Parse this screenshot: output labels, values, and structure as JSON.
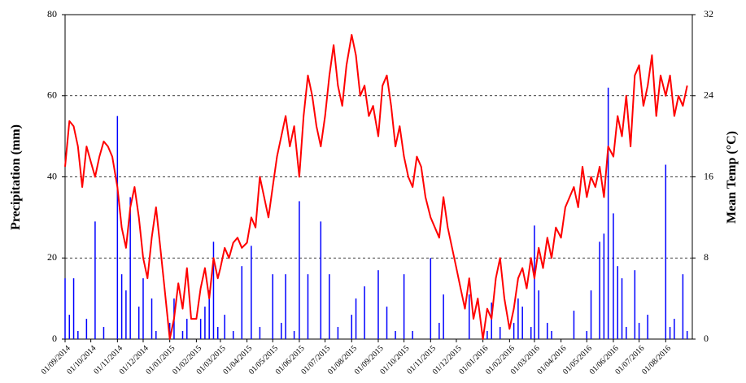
{
  "chart_data": {
    "type": "bar_line",
    "y_label": "Precipitation (mm)",
    "y2_label": "Mean Temp (°C)",
    "x": [
      "2014-09-01",
      "2014-09-06",
      "2014-09-11",
      "2014-09-16",
      "2014-09-21",
      "2014-09-26",
      "2014-10-01",
      "2014-10-06",
      "2014-10-11",
      "2014-10-16",
      "2014-10-21",
      "2014-10-26",
      "2014-11-01",
      "2014-11-06",
      "2014-11-11",
      "2014-11-16",
      "2014-11-21",
      "2014-11-26",
      "2014-12-01",
      "2014-12-06",
      "2014-12-11",
      "2014-12-16",
      "2014-12-21",
      "2014-12-26",
      "2015-01-01",
      "2015-01-06",
      "2015-01-11",
      "2015-01-16",
      "2015-01-21",
      "2015-01-26",
      "2015-02-01",
      "2015-02-06",
      "2015-02-11",
      "2015-02-16",
      "2015-02-21",
      "2015-02-26",
      "2015-03-01",
      "2015-03-06",
      "2015-03-11",
      "2015-03-16",
      "2015-03-21",
      "2015-03-26",
      "2015-04-01",
      "2015-04-06",
      "2015-04-11",
      "2015-04-16",
      "2015-04-21",
      "2015-04-26",
      "2015-05-01",
      "2015-05-06",
      "2015-05-11",
      "2015-05-16",
      "2015-05-21",
      "2015-05-26",
      "2015-06-01",
      "2015-06-06",
      "2015-06-11",
      "2015-06-16",
      "2015-06-21",
      "2015-06-26",
      "2015-07-01",
      "2015-07-06",
      "2015-07-11",
      "2015-07-16",
      "2015-07-21",
      "2015-07-26",
      "2015-08-01",
      "2015-08-06",
      "2015-08-11",
      "2015-08-16",
      "2015-08-21",
      "2015-08-26",
      "2015-09-01",
      "2015-09-06",
      "2015-09-11",
      "2015-09-16",
      "2015-09-21",
      "2015-09-26",
      "2015-10-01",
      "2015-10-06",
      "2015-10-11",
      "2015-10-16",
      "2015-10-21",
      "2015-10-26",
      "2015-11-01",
      "2015-11-06",
      "2015-11-11",
      "2015-11-16",
      "2015-11-21",
      "2015-11-26",
      "2015-12-01",
      "2015-12-06",
      "2015-12-11",
      "2015-12-16",
      "2015-12-21",
      "2015-12-26",
      "2016-01-01",
      "2016-01-06",
      "2016-01-11",
      "2016-01-16",
      "2016-01-21",
      "2016-01-26",
      "2016-02-01",
      "2016-02-06",
      "2016-02-11",
      "2016-02-16",
      "2016-02-21",
      "2016-02-26",
      "2016-03-01",
      "2016-03-06",
      "2016-03-11",
      "2016-03-16",
      "2016-03-21",
      "2016-03-26",
      "2016-04-01",
      "2016-04-06",
      "2016-04-11",
      "2016-04-16",
      "2016-04-21",
      "2016-04-26",
      "2016-05-01",
      "2016-05-06",
      "2016-05-11",
      "2016-05-16",
      "2016-05-21",
      "2016-05-26",
      "2016-06-01",
      "2016-06-06",
      "2016-06-11",
      "2016-06-16",
      "2016-06-21",
      "2016-06-26",
      "2016-07-01",
      "2016-07-06",
      "2016-07-11",
      "2016-07-16",
      "2016-07-21",
      "2016-07-26",
      "2016-08-01",
      "2016-08-06",
      "2016-08-11",
      "2016-08-16",
      "2016-08-21",
      "2016-08-26"
    ],
    "series": [
      {
        "type": "bar",
        "color": "#0000ff",
        "values": [
          15,
          6,
          15,
          2,
          0,
          5,
          0,
          29,
          0,
          3,
          0,
          0,
          55,
          16,
          12,
          35,
          0,
          8,
          15,
          0,
          10,
          2,
          0,
          0,
          4,
          10,
          0,
          2,
          5,
          0,
          0,
          5,
          8,
          12,
          24,
          3,
          0,
          6,
          0,
          2,
          0,
          18,
          0,
          23,
          0,
          3,
          0,
          0,
          16,
          0,
          4,
          16,
          0,
          2,
          34,
          0,
          16,
          0,
          0,
          29,
          0,
          16,
          0,
          3,
          0,
          0,
          6,
          10,
          0,
          13,
          0,
          0,
          17,
          0,
          8,
          0,
          2,
          0,
          16,
          0,
          2,
          0,
          0,
          0,
          20,
          0,
          4,
          11,
          0,
          0,
          0,
          0,
          0,
          11,
          0,
          0,
          0,
          2,
          9,
          0,
          3,
          0,
          0,
          4,
          10,
          8,
          0,
          3,
          28,
          12,
          0,
          4,
          2,
          0,
          0,
          0,
          0,
          7,
          0,
          0,
          2,
          12,
          0,
          24,
          26,
          62,
          31,
          18,
          15,
          3,
          0,
          17,
          4,
          0,
          6,
          0,
          0,
          0,
          43,
          3,
          5,
          0,
          16,
          2
        ]
      },
      {
        "type": "line",
        "axis": "y2",
        "color": "#ff0000",
        "values": [
          17,
          21.5,
          21,
          19,
          15,
          19,
          17.5,
          16,
          18,
          19.5,
          19,
          18,
          15,
          11,
          9,
          13,
          15,
          12,
          8,
          6,
          10,
          13,
          9,
          5,
          0,
          2,
          5.5,
          3,
          7,
          2,
          2,
          5,
          7,
          4,
          8,
          6,
          7,
          9,
          8,
          9.5,
          10,
          9,
          9.5,
          12,
          11,
          16,
          14,
          12,
          15,
          18,
          20,
          22,
          19,
          21,
          16,
          22,
          26,
          24,
          21,
          19,
          22,
          26,
          29,
          25,
          23,
          27,
          30,
          28,
          24,
          25,
          22,
          23,
          20,
          25,
          26,
          23,
          19,
          21,
          18,
          16,
          15,
          18,
          17,
          14,
          12,
          11,
          10,
          14,
          11,
          9,
          7,
          5,
          3,
          6,
          2,
          4,
          0,
          3,
          2,
          6,
          8,
          4,
          1,
          3,
          6,
          7,
          5,
          8,
          6,
          9,
          7,
          10,
          8,
          11,
          10,
          13,
          14,
          15,
          13,
          17,
          14,
          16,
          15,
          17,
          14,
          19,
          18,
          22,
          20,
          24,
          19,
          26,
          27,
          23,
          25,
          28,
          22,
          26,
          24,
          26,
          22,
          24,
          23,
          25
        ]
      }
    ],
    "xlim": [
      "2014-09-01",
      "2016-09-01"
    ],
    "xticks": [
      {
        "value": "2014-09-01",
        "label": "01/09/2014"
      },
      {
        "value": "2014-10-01",
        "label": "01/10/2014"
      },
      {
        "value": "2014-11-01",
        "label": "01/11/2014"
      },
      {
        "value": "2014-12-01",
        "label": "01/12/2014"
      },
      {
        "value": "2015-01-01",
        "label": "01/01/2015"
      },
      {
        "value": "2015-02-01",
        "label": "01/02/2015"
      },
      {
        "value": "2015-03-01",
        "label": "01/03/2015"
      },
      {
        "value": "2015-04-01",
        "label": "01/04/2015"
      },
      {
        "value": "2015-05-01",
        "label": "01/05/2015"
      },
      {
        "value": "2015-06-01",
        "label": "01/06/2015"
      },
      {
        "value": "2015-07-01",
        "label": "01/07/2015"
      },
      {
        "value": "2015-08-01",
        "label": "01/08/2015"
      },
      {
        "value": "2015-09-01",
        "label": "01/09/2015"
      },
      {
        "value": "2015-10-01",
        "label": "01/10/2015"
      },
      {
        "value": "2015-11-01",
        "label": "01/11/2015"
      },
      {
        "value": "2015-12-01",
        "label": "01/12/2015"
      },
      {
        "value": "2016-01-01",
        "label": "01/01/2016"
      },
      {
        "value": "2016-02-01",
        "label": "01/02/2016"
      },
      {
        "value": "2016-03-01",
        "label": "01/03/2016"
      },
      {
        "value": "2016-04-01",
        "label": "01/04/2016"
      },
      {
        "value": "2016-05-01",
        "label": "01/05/2016"
      },
      {
        "value": "2016-06-01",
        "label": "01/06/2016"
      },
      {
        "value": "2016-07-01",
        "label": "01/07/2016"
      },
      {
        "value": "2016-08-01",
        "label": "01/08/2016"
      }
    ],
    "ylim": [
      0,
      80
    ],
    "yticks": [
      0,
      20,
      40,
      60,
      80
    ],
    "y2lim": [
      0,
      32
    ],
    "y2ticks": [
      0,
      8,
      16,
      24,
      32
    ],
    "grid": true
  }
}
